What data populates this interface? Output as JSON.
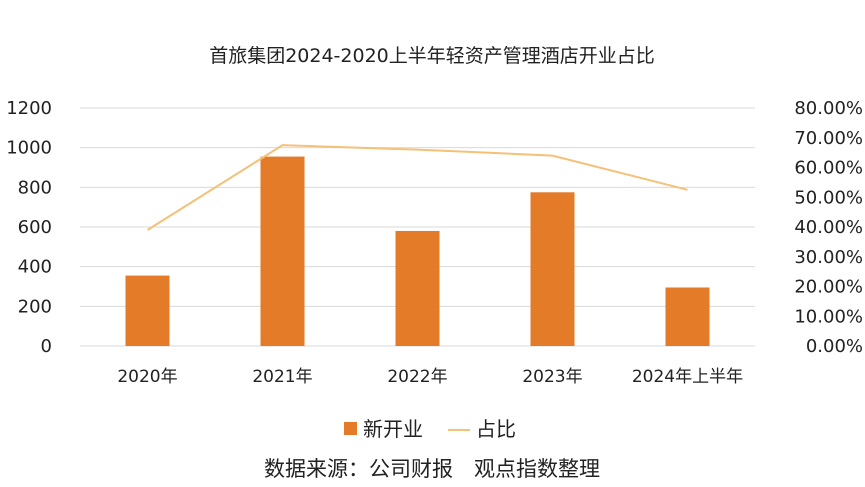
{
  "chart_data": {
    "type": "bar",
    "title": "首旅集团2024-2020上半年轻资产管理酒店开业占比",
    "categories": [
      "2020年",
      "2021年",
      "2022年",
      "2023年",
      "2024年上半年"
    ],
    "series": [
      {
        "name": "新开业",
        "type": "bar",
        "axis": "left",
        "values": [
          355,
          955,
          580,
          775,
          295
        ]
      },
      {
        "name": "占比",
        "type": "line",
        "axis": "right",
        "values": [
          0.39,
          0.675,
          0.66,
          0.64,
          0.525
        ]
      }
    ],
    "y_left": {
      "min": 0,
      "max": 1200,
      "ticks": [
        "0",
        "200",
        "400",
        "600",
        "800",
        "1000",
        "1200"
      ]
    },
    "y_right": {
      "min": 0,
      "max": 0.8,
      "ticks": [
        "0.00%",
        "10.00%",
        "20.00%",
        "30.00%",
        "40.00%",
        "50.00%",
        "60.00%",
        "70.00%",
        "80.00%"
      ]
    },
    "grid": true,
    "legend_position": "bottom",
    "colors": {
      "bar": "#e47b29",
      "line": "#f5c078",
      "grid": "#d9d9d9"
    }
  },
  "source_note": "数据来源：公司财报　观点指数整理"
}
